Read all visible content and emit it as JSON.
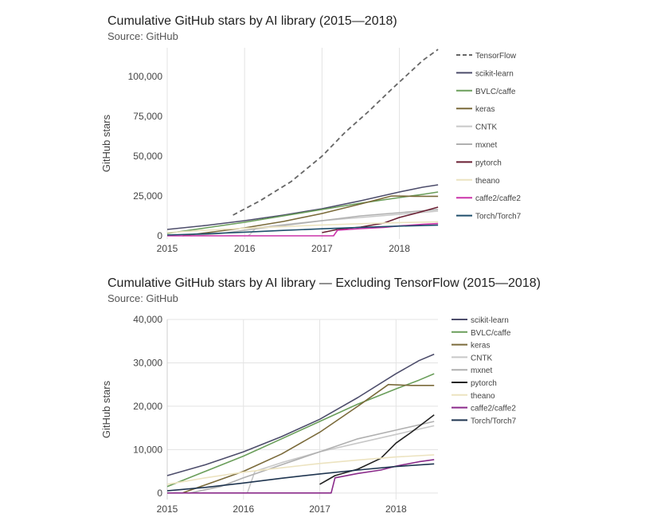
{
  "chart_data": [
    {
      "type": "line",
      "title": "Cumulative GitHub stars by AI library (2015—2018)",
      "subtitle": "Source: GitHub",
      "xlabel": "",
      "ylabel": "GitHub stars",
      "xlim": [
        2015.0,
        2018.55
      ],
      "ylim": [
        -2000,
        118000
      ],
      "x_ticks": [
        "2015",
        "2016",
        "2017",
        "2018"
      ],
      "y_ticks": [
        "0",
        "25,000",
        "50,000",
        "75,000",
        "100,000"
      ],
      "grid": "vertical lines at year ticks",
      "legend": "right",
      "series": [
        {
          "name": "TensorFlow",
          "color": "#666666",
          "dash": "6,4",
          "x": [
            2015.85,
            2016.2,
            2016.6,
            2017.0,
            2017.3,
            2017.6,
            2017.9,
            2018.1,
            2018.3,
            2018.5
          ],
          "y": [
            13000,
            22000,
            34000,
            50000,
            65000,
            78000,
            92000,
            101000,
            110000,
            117000
          ]
        },
        {
          "name": "scikit-learn",
          "color": "#4d4d6b",
          "x": [
            2015.0,
            2015.5,
            2016.0,
            2016.5,
            2017.0,
            2017.5,
            2018.0,
            2018.3,
            2018.5
          ],
          "y": [
            4000,
            6500,
            9500,
            13000,
            17000,
            22000,
            27500,
            30500,
            32000
          ]
        },
        {
          "name": "BVLC/caffe",
          "color": "#6a9e5a",
          "x": [
            2015.0,
            2015.5,
            2016.0,
            2016.5,
            2017.0,
            2017.5,
            2018.0,
            2018.3,
            2018.5
          ],
          "y": [
            1500,
            5000,
            8500,
            12500,
            16500,
            20500,
            24000,
            26000,
            27500
          ]
        },
        {
          "name": "keras",
          "color": "#7a6a3a",
          "x": [
            2015.2,
            2015.6,
            2016.0,
            2016.5,
            2017.0,
            2017.5,
            2017.9,
            2018.2,
            2018.5
          ],
          "y": [
            0,
            2500,
            5000,
            9000,
            14000,
            20000,
            25000,
            24800,
            24800
          ]
        },
        {
          "name": "CNTK",
          "color": "#c8c8c8",
          "x": [
            2016.05,
            2016.15,
            2016.5,
            2017.0,
            2017.5,
            2018.0,
            2018.5
          ],
          "y": [
            0,
            5000,
            7000,
            9500,
            11500,
            13500,
            15500
          ]
        },
        {
          "name": "mxnet",
          "color": "#b0b0b0",
          "x": [
            2015.3,
            2015.7,
            2016.0,
            2016.5,
            2017.0,
            2017.5,
            2018.0,
            2018.5
          ],
          "y": [
            0,
            1500,
            3500,
            6500,
            9500,
            12500,
            14500,
            16500
          ]
        },
        {
          "name": "pytorch",
          "color": "#6a1f33",
          "x": [
            2017.0,
            2017.1,
            2017.2,
            2017.5,
            2017.8,
            2018.0,
            2018.2,
            2018.5
          ],
          "y": [
            2000,
            3000,
            4000,
            5500,
            8000,
            11500,
            14000,
            18000
          ]
        },
        {
          "name": "theano",
          "color": "#ece3c0",
          "x": [
            2015.0,
            2015.5,
            2016.0,
            2016.5,
            2017.0,
            2017.5,
            2018.0,
            2018.5
          ],
          "y": [
            2000,
            3500,
            4800,
            5800,
            6800,
            7600,
            8300,
            8800
          ]
        },
        {
          "name": "caffe2/caffe2",
          "color": "#cc33aa",
          "x": [
            2015.0,
            2017.15,
            2017.2,
            2017.5,
            2017.8,
            2018.0,
            2018.3,
            2018.5
          ],
          "y": [
            0,
            0,
            3500,
            4500,
            5300,
            6200,
            7200,
            7700
          ]
        },
        {
          "name": "Torch/Torch7",
          "color": "#1f4e6b",
          "x": [
            2015.0,
            2015.5,
            2016.0,
            2016.5,
            2017.0,
            2017.5,
            2018.0,
            2018.5
          ],
          "y": [
            500,
            1300,
            2300,
            3400,
            4400,
            5300,
            6100,
            6700
          ]
        }
      ]
    },
    {
      "type": "line",
      "title": "Cumulative GitHub stars by AI library — Excluding TensorFlow (2015—2018)",
      "subtitle": "Source: GitHub",
      "xlabel": "",
      "ylabel": "GitHub stars",
      "xlim": [
        2015.0,
        2018.55
      ],
      "ylim": [
        -1500,
        40000
      ],
      "x_ticks": [
        "2015",
        "2016",
        "2017",
        "2018"
      ],
      "y_ticks": [
        "0",
        "10,000",
        "20,000",
        "30,000",
        "40,000"
      ],
      "grid": "horizontal and vertical",
      "legend": "right",
      "series": [
        {
          "name": "scikit-learn",
          "color": "#4d4d6b",
          "x": [
            2015.0,
            2015.5,
            2016.0,
            2016.5,
            2017.0,
            2017.5,
            2018.0,
            2018.3,
            2018.5
          ],
          "y": [
            4000,
            6500,
            9500,
            13000,
            17000,
            22000,
            27500,
            30500,
            32000
          ]
        },
        {
          "name": "BVLC/caffe",
          "color": "#6a9e5a",
          "x": [
            2015.0,
            2015.5,
            2016.0,
            2016.5,
            2017.0,
            2017.5,
            2018.0,
            2018.3,
            2018.5
          ],
          "y": [
            1500,
            5000,
            8500,
            12500,
            16500,
            20500,
            24000,
            26000,
            27500
          ]
        },
        {
          "name": "keras",
          "color": "#7a6a3a",
          "x": [
            2015.2,
            2015.6,
            2016.0,
            2016.5,
            2017.0,
            2017.5,
            2017.9,
            2018.2,
            2018.5
          ],
          "y": [
            0,
            2500,
            5000,
            9000,
            14000,
            20000,
            25000,
            24800,
            24800
          ]
        },
        {
          "name": "CNTK",
          "color": "#c8c8c8",
          "x": [
            2016.05,
            2016.15,
            2016.5,
            2017.0,
            2017.5,
            2018.0,
            2018.5
          ],
          "y": [
            0,
            5000,
            7000,
            9500,
            11500,
            13500,
            15500
          ]
        },
        {
          "name": "mxnet",
          "color": "#b0b0b0",
          "x": [
            2015.3,
            2015.7,
            2016.0,
            2016.5,
            2017.0,
            2017.5,
            2018.0,
            2018.5
          ],
          "y": [
            0,
            1500,
            3500,
            6500,
            9500,
            12500,
            14500,
            16500
          ]
        },
        {
          "name": "pytorch",
          "color": "#222222",
          "x": [
            2017.0,
            2017.1,
            2017.2,
            2017.5,
            2017.8,
            2018.0,
            2018.2,
            2018.5
          ],
          "y": [
            2000,
            3000,
            4000,
            5500,
            8000,
            11500,
            14000,
            18000
          ]
        },
        {
          "name": "theano",
          "color": "#ece3c0",
          "x": [
            2015.0,
            2015.5,
            2016.0,
            2016.5,
            2017.0,
            2017.5,
            2018.0,
            2018.5
          ],
          "y": [
            2000,
            3500,
            4800,
            5800,
            6800,
            7600,
            8300,
            8800
          ]
        },
        {
          "name": "caffe2/caffe2",
          "color": "#8a2a8a",
          "x": [
            2015.0,
            2017.15,
            2017.2,
            2017.5,
            2017.8,
            2018.0,
            2018.3,
            2018.5
          ],
          "y": [
            0,
            0,
            3500,
            4500,
            5300,
            6200,
            7200,
            7700
          ]
        },
        {
          "name": "Torch/Torch7",
          "color": "#1f3550",
          "x": [
            2015.0,
            2015.5,
            2016.0,
            2016.5,
            2017.0,
            2017.5,
            2018.0,
            2018.5
          ],
          "y": [
            500,
            1300,
            2300,
            3400,
            4400,
            5300,
            6100,
            6700
          ]
        }
      ]
    }
  ]
}
